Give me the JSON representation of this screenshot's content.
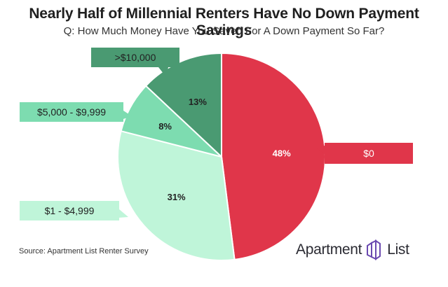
{
  "header": {
    "title": "Nearly Half of Millennial Renters Have No Down Payment Savings",
    "subtitle": "Q: How Much Money Have You Saved For A Down Payment So Far?"
  },
  "footer": {
    "source": "Source: Apartment List Renter Survey",
    "brand_left": "Apartment",
    "brand_right": "List"
  },
  "chart_data": {
    "type": "pie",
    "title": "Nearly Half of Millennial Renters Have No Down Payment Savings",
    "subtitle": "Q: How Much Money Have You Saved For A Down Payment So Far?",
    "start": "12 o'clock",
    "direction": "clockwise",
    "slices": [
      {
        "label": "$0",
        "value": 48,
        "value_label": "48%",
        "color": "#e0364a",
        "label_text_color": "#ffffff"
      },
      {
        "label": "$1 - $4,999",
        "value": 31,
        "value_label": "31%",
        "color": "#bff5d9",
        "label_text_color": "#222222"
      },
      {
        "label": "$5,000 - $9,999",
        "value": 8,
        "value_label": "8%",
        "color": "#7ddcb0",
        "label_text_color": "#222222"
      },
      {
        "label": ">$10,000",
        "value": 13,
        "value_label": "13%",
        "color": "#4a9a72",
        "label_text_color": "#222222"
      }
    ]
  }
}
